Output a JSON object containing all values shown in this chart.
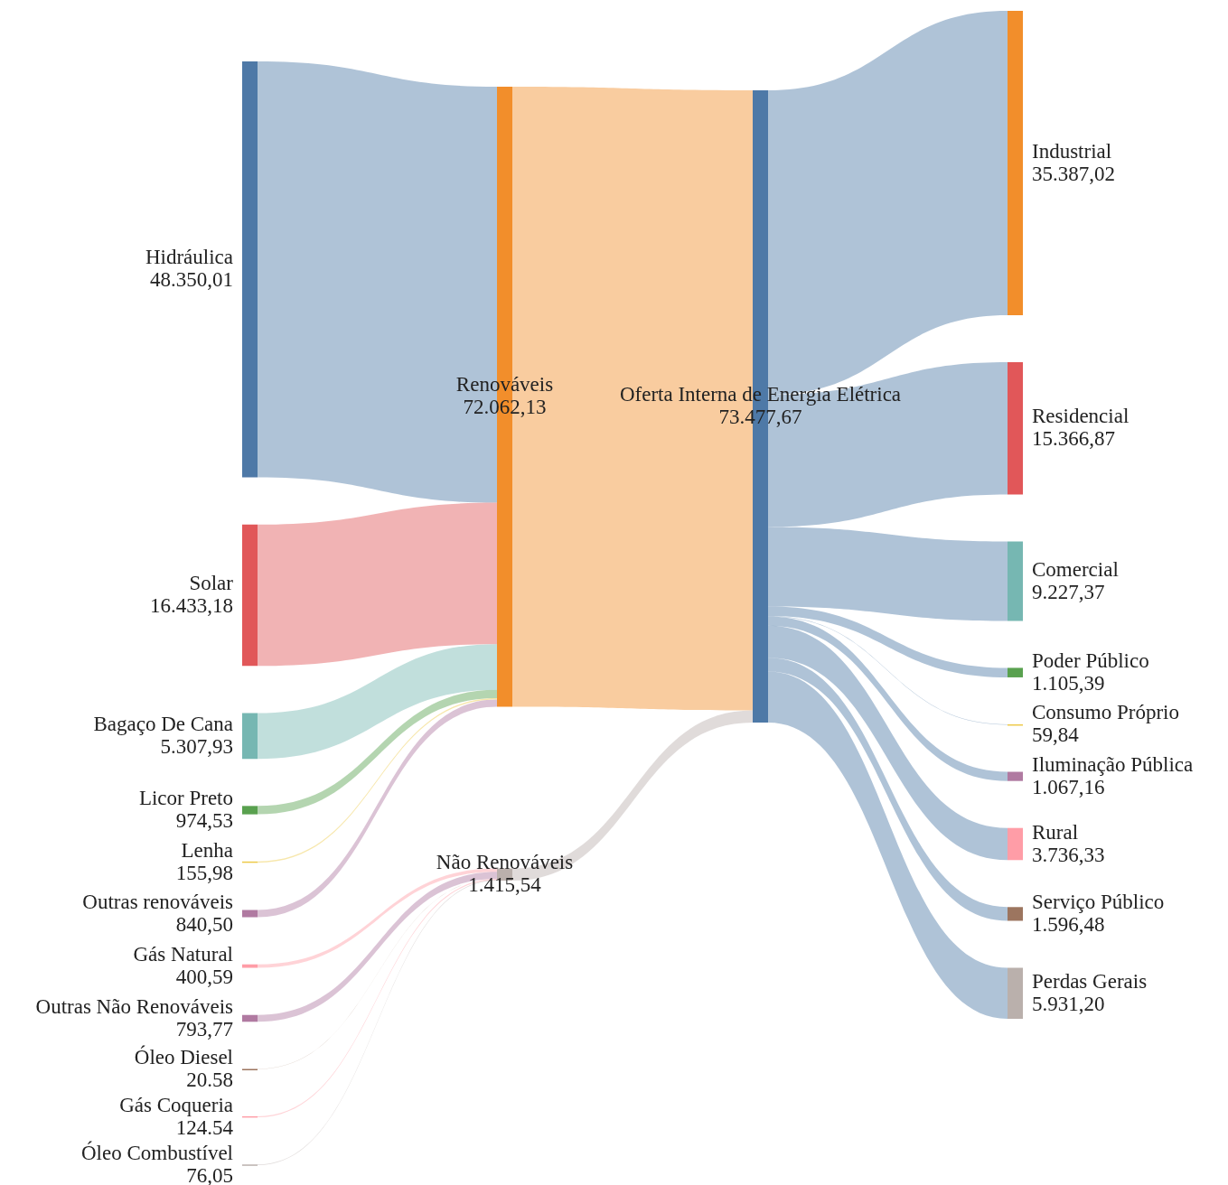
{
  "chart_data": {
    "type": "other",
    "categories": [
      "Hidráulica",
      "Solar",
      "Bagaço De Cana",
      "Licor Preto",
      "Lenha",
      "Outras renováveis",
      "Gás Natural",
      "Outras Não Renováveis",
      "Óleo Diesel",
      "Gás Coqueria",
      "Óleo Combustível",
      "Renováveis",
      "Não Renováveis",
      "Oferta Interna de Energia Elétrica",
      "Industrial",
      "Residencial",
      "Comercial",
      "Poder Público",
      "Consumo Próprio",
      "Iluminação Pública",
      "Rural",
      "Serviço Público",
      "Perdas Gerais"
    ],
    "values": [
      48350.01,
      16433.18,
      5307.93,
      974.53,
      155.98,
      840.5,
      400.59,
      793.77,
      20.58,
      124.54,
      76.05,
      72062.13,
      1415.54,
      73477.67,
      35387.02,
      15366.87,
      9227.37,
      1105.39,
      59.84,
      1067.16,
      3736.33,
      1596.48,
      5931.2
    ],
    "value_labels": [
      "48.350,01",
      "16.433,18",
      "5.307,93",
      "974,53",
      "155,98",
      "840,50",
      "400,59",
      "793,77",
      "20.58",
      "124.54",
      "76,05",
      "72.062,13",
      "1.415,54",
      "73.477,67",
      "35.387,02",
      "15.366,87",
      "9.227,37",
      "1.105,39",
      "59,84",
      "1.067,16",
      "3.736,33",
      "1.596,48",
      "5.931,20"
    ],
    "colors": [
      "#4e79a7",
      "#e15759",
      "#76b7b2",
      "#59a14f",
      "#edc948",
      "#b07aa1",
      "#ff9da7",
      "#b07aa1",
      "#9c755f",
      "#ff9da7",
      "#bab0ac",
      "#f28e2b",
      "#bab0ac",
      "#4e79a7",
      "#f28e2b",
      "#e15759",
      "#76b7b2",
      "#59a14f",
      "#edc948",
      "#b07aa1",
      "#ff9da7",
      "#9c755f",
      "#bab0ac"
    ]
  }
}
